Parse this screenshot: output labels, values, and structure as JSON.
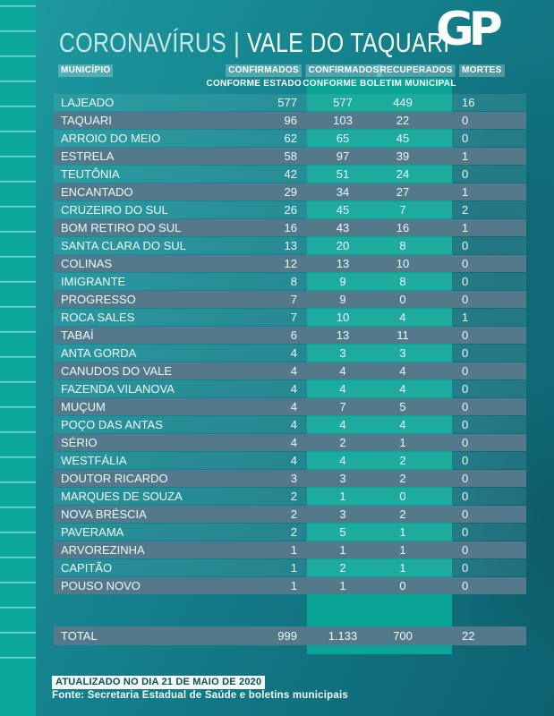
{
  "title": {
    "topic": "CORONAVÍRUS",
    "separator": "|",
    "region": "VALE DO TAQUARI"
  },
  "logo": {
    "text": "GP"
  },
  "table": {
    "headers": {
      "municipio": "MUNICÍPIO",
      "confirmados_estado": "CONFIRMADOS",
      "conforme_estado": "CONFORME ESTADO",
      "confirmados_municipal": "CONFIRMADOS",
      "recuperados": "RECUPERADOS",
      "conforme_boletim": "CONFORME BOLETIM MUNICIPAL",
      "mortes": "MORTES"
    },
    "rows": [
      {
        "municipio": "LAJEADO",
        "confirmados_estado": "577",
        "confirmados_municipal": "577",
        "recuperados": "449",
        "mortes": "16"
      },
      {
        "municipio": "TAQUARI",
        "confirmados_estado": "96",
        "confirmados_municipal": "103",
        "recuperados": "22",
        "mortes": "0"
      },
      {
        "municipio": "ARROIO DO MEIO",
        "confirmados_estado": "62",
        "confirmados_municipal": "65",
        "recuperados": "45",
        "mortes": "0"
      },
      {
        "municipio": "ESTRELA",
        "confirmados_estado": "58",
        "confirmados_municipal": "97",
        "recuperados": "39",
        "mortes": "1"
      },
      {
        "municipio": "TEUTÔNIA",
        "confirmados_estado": "42",
        "confirmados_municipal": "51",
        "recuperados": "24",
        "mortes": "0"
      },
      {
        "municipio": "ENCANTADO",
        "confirmados_estado": "29",
        "confirmados_municipal": "34",
        "recuperados": "27",
        "mortes": "1"
      },
      {
        "municipio": "CRUZEIRO DO SUL",
        "confirmados_estado": "26",
        "confirmados_municipal": "45",
        "recuperados": "7",
        "mortes": "2"
      },
      {
        "municipio": "BOM RETIRO DO SUL",
        "confirmados_estado": "16",
        "confirmados_municipal": "43",
        "recuperados": "16",
        "mortes": "1"
      },
      {
        "municipio": "SANTA CLARA DO SUL",
        "confirmados_estado": "13",
        "confirmados_municipal": "20",
        "recuperados": "8",
        "mortes": "0"
      },
      {
        "municipio": "COLINAS",
        "confirmados_estado": "12",
        "confirmados_municipal": "13",
        "recuperados": "10",
        "mortes": "0"
      },
      {
        "municipio": "IMIGRANTE",
        "confirmados_estado": "8",
        "confirmados_municipal": "9",
        "recuperados": "8",
        "mortes": "0"
      },
      {
        "municipio": "PROGRESSO",
        "confirmados_estado": "7",
        "confirmados_municipal": "9",
        "recuperados": "0",
        "mortes": "0"
      },
      {
        "municipio": "ROCA SALES",
        "confirmados_estado": "7",
        "confirmados_municipal": "10",
        "recuperados": "4",
        "mortes": "1"
      },
      {
        "municipio": "TABAÍ",
        "confirmados_estado": "6",
        "confirmados_municipal": "13",
        "recuperados": "11",
        "mortes": "0"
      },
      {
        "municipio": "ANTA GORDA",
        "confirmados_estado": "4",
        "confirmados_municipal": "3",
        "recuperados": "3",
        "mortes": "0"
      },
      {
        "municipio": "CANUDOS DO VALE",
        "confirmados_estado": "4",
        "confirmados_municipal": "4",
        "recuperados": "4",
        "mortes": "0"
      },
      {
        "municipio": "FAZENDA VILANOVA",
        "confirmados_estado": "4",
        "confirmados_municipal": "4",
        "recuperados": "4",
        "mortes": "0"
      },
      {
        "municipio": "MUÇUM",
        "confirmados_estado": "4",
        "confirmados_municipal": "7",
        "recuperados": "5",
        "mortes": "0"
      },
      {
        "municipio": "POÇO DAS ANTAS",
        "confirmados_estado": "4",
        "confirmados_municipal": "4",
        "recuperados": "4",
        "mortes": "0"
      },
      {
        "municipio": "SÉRIO",
        "confirmados_estado": "4",
        "confirmados_municipal": "2",
        "recuperados": "1",
        "mortes": "0"
      },
      {
        "municipio": "WESTFÁLIA",
        "confirmados_estado": "4",
        "confirmados_municipal": "4",
        "recuperados": "2",
        "mortes": "0"
      },
      {
        "municipio": "DOUTOR RICARDO",
        "confirmados_estado": "3",
        "confirmados_municipal": "3",
        "recuperados": "2",
        "mortes": "0"
      },
      {
        "municipio": "MARQUES DE SOUZA",
        "confirmados_estado": "2",
        "confirmados_municipal": "1",
        "recuperados": "0",
        "mortes": "0"
      },
      {
        "municipio": "NOVA BRÉSCIA",
        "confirmados_estado": "2",
        "confirmados_municipal": "3",
        "recuperados": "2",
        "mortes": "0"
      },
      {
        "municipio": "PAVERAMA",
        "confirmados_estado": "2",
        "confirmados_municipal": "5",
        "recuperados": "1",
        "mortes": "0"
      },
      {
        "municipio": "ARVOREZINHA",
        "confirmados_estado": "1",
        "confirmados_municipal": "1",
        "recuperados": "1",
        "mortes": "0"
      },
      {
        "municipio": "CAPITÃO",
        "confirmados_estado": "1",
        "confirmados_municipal": "2",
        "recuperados": "1",
        "mortes": "0"
      },
      {
        "municipio": "POUSO NOVO",
        "confirmados_estado": "1",
        "confirmados_municipal": "1",
        "recuperados": "0",
        "mortes": "0"
      }
    ],
    "total": {
      "label": "TOTAL",
      "confirmados_estado": "999",
      "confirmados_municipal": "1.133",
      "recuperados": "700",
      "mortes": "22"
    }
  },
  "footer": {
    "updated": "ATUALIZADO NO DIA 21 DE MAIO DE 2020",
    "source": "Fonte: Secretaria Estadual de Saúde e boletins municipais"
  },
  "colors": {
    "background_light": "#1d9aa0",
    "background_dark": "#0e6170",
    "left_strip": "#0ba69c",
    "band_highlight": "#09a496",
    "gray_row": "#53798b",
    "text": "#eef8f7"
  },
  "chart_data": {
    "type": "table",
    "title": "CORONAVÍRUS | VALE DO TAQUARI",
    "columns": [
      "MUNICÍPIO",
      "CONFIRMADOS CONFORME ESTADO",
      "CONFIRMADOS CONFORME BOLETIM MUNICIPAL",
      "RECUPERADOS CONFORME BOLETIM MUNICIPAL",
      "MORTES"
    ],
    "rows": [
      [
        "LAJEADO",
        577,
        577,
        449,
        16
      ],
      [
        "TAQUARI",
        96,
        103,
        22,
        0
      ],
      [
        "ARROIO DO MEIO",
        62,
        65,
        45,
        0
      ],
      [
        "ESTRELA",
        58,
        97,
        39,
        1
      ],
      [
        "TEUTÔNIA",
        42,
        51,
        24,
        0
      ],
      [
        "ENCANTADO",
        29,
        34,
        27,
        1
      ],
      [
        "CRUZEIRO DO SUL",
        26,
        45,
        7,
        2
      ],
      [
        "BOM RETIRO DO SUL",
        16,
        43,
        16,
        1
      ],
      [
        "SANTA CLARA DO SUL",
        13,
        20,
        8,
        0
      ],
      [
        "COLINAS",
        12,
        13,
        10,
        0
      ],
      [
        "IMIGRANTE",
        8,
        9,
        8,
        0
      ],
      [
        "PROGRESSO",
        7,
        9,
        0,
        0
      ],
      [
        "ROCA SALES",
        7,
        10,
        4,
        1
      ],
      [
        "TABAÍ",
        6,
        13,
        11,
        0
      ],
      [
        "ANTA GORDA",
        4,
        3,
        3,
        0
      ],
      [
        "CANUDOS DO VALE",
        4,
        4,
        4,
        0
      ],
      [
        "FAZENDA VILANOVA",
        4,
        4,
        4,
        0
      ],
      [
        "MUÇUM",
        4,
        7,
        5,
        0
      ],
      [
        "POÇO DAS ANTAS",
        4,
        4,
        4,
        0
      ],
      [
        "SÉRIO",
        4,
        2,
        1,
        0
      ],
      [
        "WESTFÁLIA",
        4,
        4,
        2,
        0
      ],
      [
        "DOUTOR RICARDO",
        3,
        3,
        2,
        0
      ],
      [
        "MARQUES DE SOUZA",
        2,
        1,
        0,
        0
      ],
      [
        "NOVA BRÉSCIA",
        2,
        3,
        2,
        0
      ],
      [
        "PAVERAMA",
        2,
        5,
        1,
        0
      ],
      [
        "ARVOREZINHA",
        1,
        1,
        1,
        0
      ],
      [
        "CAPITÃO",
        1,
        2,
        1,
        0
      ],
      [
        "POUSO NOVO",
        1,
        1,
        0,
        0
      ]
    ],
    "total_row": [
      "TOTAL",
      999,
      1133,
      700,
      22
    ],
    "footnotes": [
      "ATUALIZADO NO DIA 21 DE MAIO DE 2020",
      "Fonte: Secretaria Estadual de Saúde e boletins municipais"
    ]
  }
}
